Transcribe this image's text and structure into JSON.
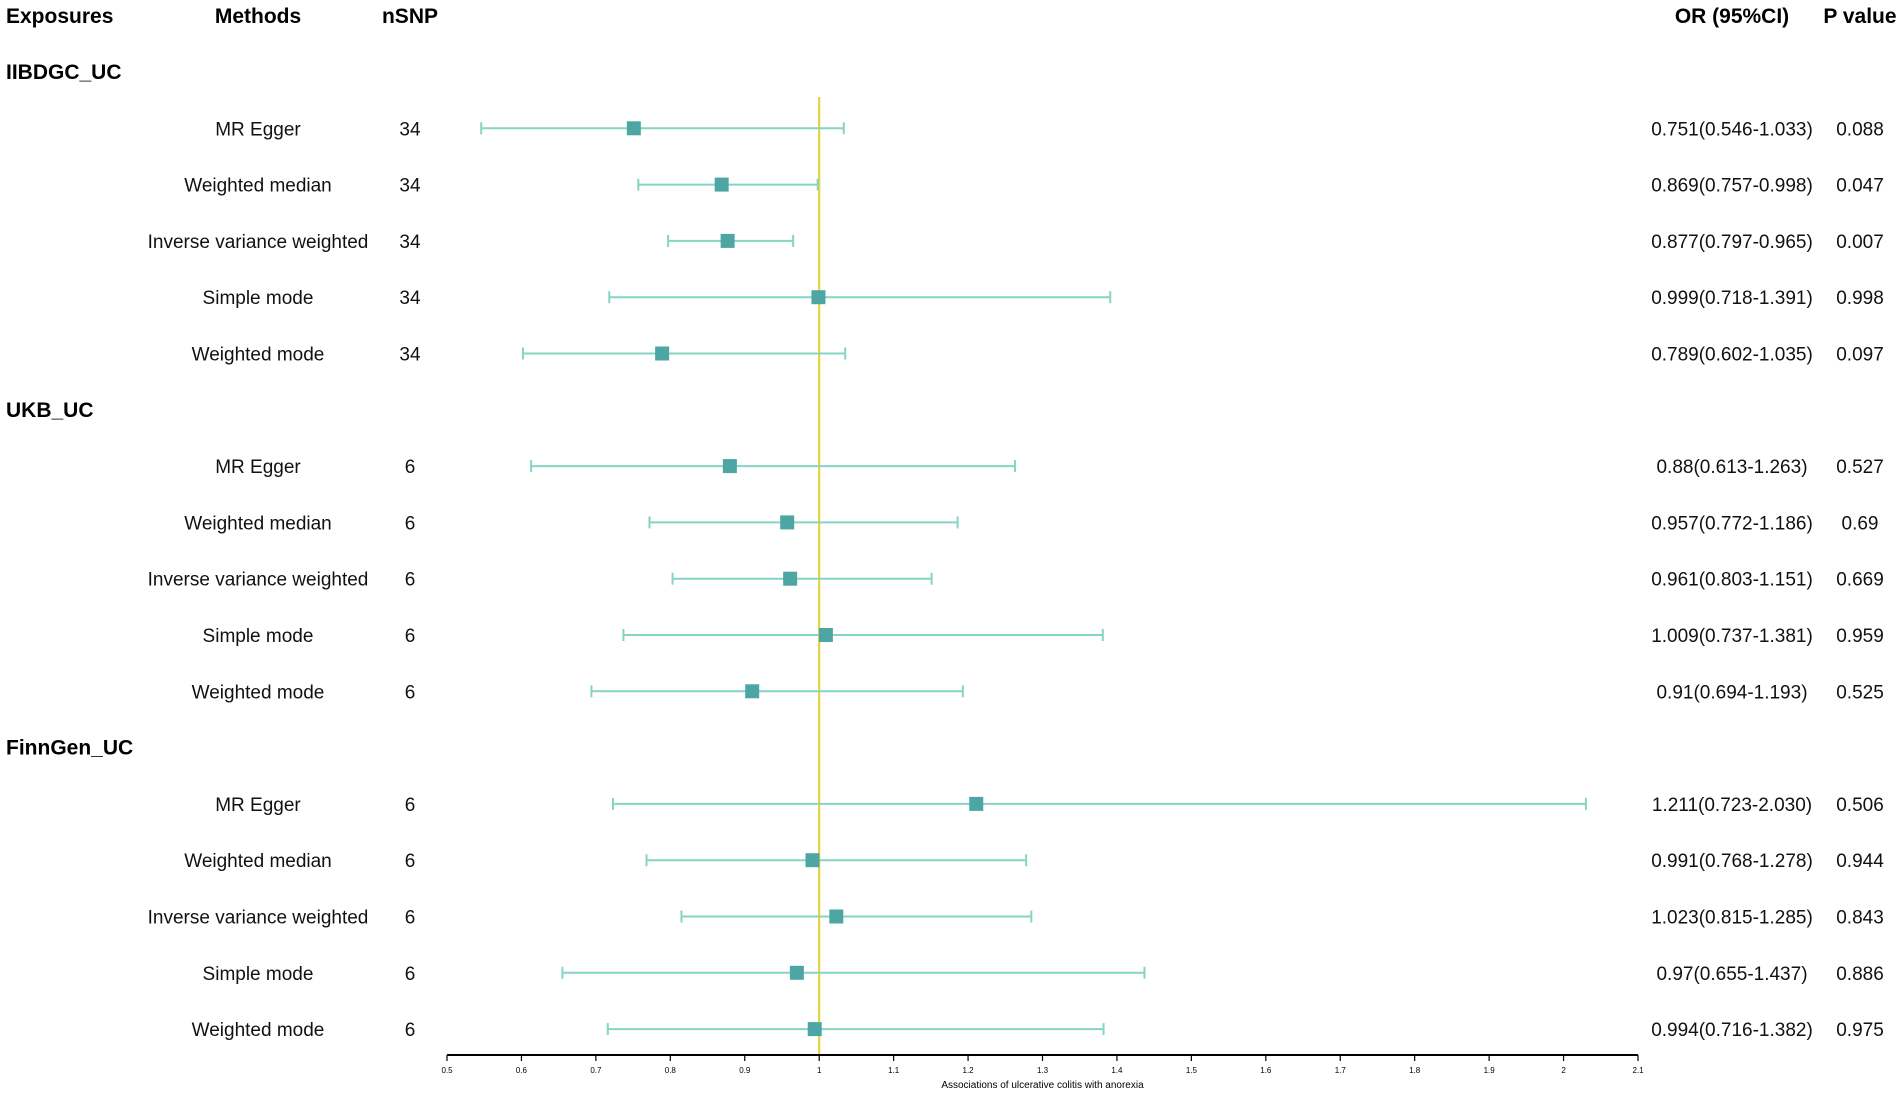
{
  "headers": {
    "exposures": "Exposures",
    "methods": "Methods",
    "nsnp": "nSNP",
    "or_ci": "OR (95%CI)",
    "p_value": "P value"
  },
  "colors": {
    "marker": "#4da6a4",
    "whisker": "#86d4c3",
    "ref_line": "#e6d33c",
    "axis": "#000000"
  },
  "chart_data": {
    "type": "forest",
    "xlabel": "Associations of ulcerative colitis with anorexia",
    "xlim": [
      0.5,
      2.1
    ],
    "ticks": [
      "0.5",
      "0.6",
      "0.7",
      "0.8",
      "0.9",
      "1",
      "1.1",
      "1.2",
      "1.3",
      "1.4",
      "1.5",
      "1.6",
      "1.7",
      "1.8",
      "1.9",
      "2",
      "2.1"
    ],
    "reference_value": 1,
    "groups": [
      {
        "name": "IIBDGC_UC",
        "rows": [
          {
            "method": "MR Egger",
            "nsnp": "34",
            "or": 0.751,
            "lo": 0.546,
            "hi": 1.033,
            "or_text": "0.751(0.546-1.033)",
            "p": "0.088"
          },
          {
            "method": "Weighted median",
            "nsnp": "34",
            "or": 0.869,
            "lo": 0.757,
            "hi": 0.998,
            "or_text": "0.869(0.757-0.998)",
            "p": "0.047"
          },
          {
            "method": "Inverse variance weighted",
            "nsnp": "34",
            "or": 0.877,
            "lo": 0.797,
            "hi": 0.965,
            "or_text": "0.877(0.797-0.965)",
            "p": "0.007"
          },
          {
            "method": "Simple mode",
            "nsnp": "34",
            "or": 0.999,
            "lo": 0.718,
            "hi": 1.391,
            "or_text": "0.999(0.718-1.391)",
            "p": "0.998"
          },
          {
            "method": "Weighted mode",
            "nsnp": "34",
            "or": 0.789,
            "lo": 0.602,
            "hi": 1.035,
            "or_text": "0.789(0.602-1.035)",
            "p": "0.097"
          }
        ]
      },
      {
        "name": "UKB_UC",
        "rows": [
          {
            "method": "MR Egger",
            "nsnp": "6",
            "or": 0.88,
            "lo": 0.613,
            "hi": 1.263,
            "or_text": "0.88(0.613-1.263)",
            "p": "0.527"
          },
          {
            "method": "Weighted median",
            "nsnp": "6",
            "or": 0.957,
            "lo": 0.772,
            "hi": 1.186,
            "or_text": "0.957(0.772-1.186)",
            "p": "0.69"
          },
          {
            "method": "Inverse variance weighted",
            "nsnp": "6",
            "or": 0.961,
            "lo": 0.803,
            "hi": 1.151,
            "or_text": "0.961(0.803-1.151)",
            "p": "0.669"
          },
          {
            "method": "Simple mode",
            "nsnp": "6",
            "or": 1.009,
            "lo": 0.737,
            "hi": 1.381,
            "or_text": "1.009(0.737-1.381)",
            "p": "0.959"
          },
          {
            "method": "Weighted mode",
            "nsnp": "6",
            "or": 0.91,
            "lo": 0.694,
            "hi": 1.193,
            "or_text": "0.91(0.694-1.193)",
            "p": "0.525"
          }
        ]
      },
      {
        "name": "FinnGen_UC",
        "rows": [
          {
            "method": "MR Egger",
            "nsnp": "6",
            "or": 1.211,
            "lo": 0.723,
            "hi": 2.03,
            "or_text": "1.211(0.723-2.030)",
            "p": "0.506"
          },
          {
            "method": "Weighted median",
            "nsnp": "6",
            "or": 0.991,
            "lo": 0.768,
            "hi": 1.278,
            "or_text": "0.991(0.768-1.278)",
            "p": "0.944"
          },
          {
            "method": "Inverse variance weighted",
            "nsnp": "6",
            "or": 1.023,
            "lo": 0.815,
            "hi": 1.285,
            "or_text": "1.023(0.815-1.285)",
            "p": "0.843"
          },
          {
            "method": "Simple mode",
            "nsnp": "6",
            "or": 0.97,
            "lo": 0.655,
            "hi": 1.437,
            "or_text": "0.97(0.655-1.437)",
            "p": "0.886"
          },
          {
            "method": "Weighted mode",
            "nsnp": "6",
            "or": 0.994,
            "lo": 0.716,
            "hi": 1.382,
            "or_text": "0.994(0.716-1.382)",
            "p": "0.975"
          }
        ]
      }
    ]
  }
}
